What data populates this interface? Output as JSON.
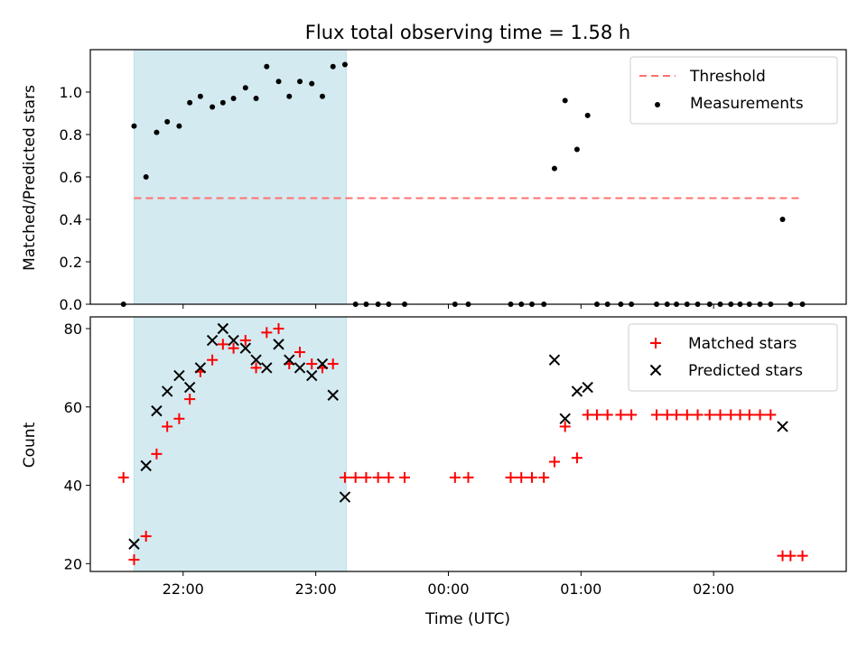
{
  "chart_data": {
    "title": "Flux total observing time = 1.58 h",
    "xlabel": "Time (UTC)",
    "x_ticks": [
      "22:00",
      "23:00",
      "00:00",
      "01:00",
      "02:00"
    ],
    "x_tick_hours": [
      22,
      23,
      24,
      25,
      26
    ],
    "xlim_hours": [
      21.3,
      27.0
    ],
    "shaded_interval_hours": [
      21.63,
      23.23
    ],
    "shade_color": "#d3eaf0",
    "panels": [
      {
        "type": "scatter",
        "ylabel": "Matched/Predicted stars",
        "ylim": [
          0,
          1.2
        ],
        "y_ticks": [
          "0.0",
          "0.2",
          "0.4",
          "0.6",
          "0.8",
          "1.0"
        ],
        "y_tick_values": [
          0,
          0.2,
          0.4,
          0.6,
          0.8,
          1.0
        ],
        "legend_position": "upper-right",
        "threshold": {
          "name": "Threshold",
          "value": 0.5,
          "x_range": [
            21.63,
            26.67
          ],
          "color": "#ff7070"
        },
        "series": [
          {
            "name": "Measurements",
            "marker": "dot",
            "color": "#000000",
            "x": [
              21.55,
              21.63,
              21.72,
              21.8,
              21.88,
              21.97,
              22.05,
              22.13,
              22.22,
              22.3,
              22.38,
              22.47,
              22.55,
              22.63,
              22.72,
              22.8,
              22.88,
              22.97,
              23.05,
              23.13,
              23.22,
              23.3,
              23.38,
              23.47,
              23.55,
              23.67,
              24.05,
              24.15,
              24.47,
              24.55,
              24.63,
              24.72,
              24.8,
              24.88,
              24.97,
              25.05,
              25.12,
              25.2,
              25.3,
              25.38,
              25.57,
              25.65,
              25.72,
              25.8,
              25.88,
              25.97,
              26.05,
              26.13,
              26.2,
              26.27,
              26.35,
              26.43,
              26.52,
              26.58,
              26.67
            ],
            "y": [
              0.0,
              0.84,
              0.6,
              0.81,
              0.86,
              0.84,
              0.95,
              0.98,
              0.93,
              0.95,
              0.97,
              1.02,
              0.97,
              1.12,
              1.05,
              0.98,
              1.05,
              1.04,
              0.98,
              1.12,
              1.13,
              0.0,
              0.0,
              0.0,
              0.0,
              0.0,
              0.0,
              0.0,
              0.0,
              0.0,
              0.0,
              0.0,
              0.64,
              0.96,
              0.73,
              0.89,
              0.0,
              0.0,
              0.0,
              0.0,
              0.0,
              0.0,
              0.0,
              0.0,
              0.0,
              0.0,
              0.0,
              0.0,
              0.0,
              0.0,
              0.0,
              0.0,
              0.4,
              0.0,
              0.0
            ]
          }
        ]
      },
      {
        "type": "scatter",
        "ylabel": "Count",
        "ylim": [
          18,
          83
        ],
        "y_ticks": [
          "20",
          "40",
          "60",
          "80"
        ],
        "y_tick_values": [
          20,
          40,
          60,
          80
        ],
        "legend_position": "upper-right",
        "series": [
          {
            "name": "Matched stars",
            "marker": "plus",
            "color": "#ff0000",
            "x": [
              21.55,
              21.63,
              21.72,
              21.8,
              21.88,
              21.97,
              22.05,
              22.13,
              22.22,
              22.3,
              22.38,
              22.47,
              22.55,
              22.63,
              22.72,
              22.8,
              22.88,
              22.97,
              23.05,
              23.13,
              23.22,
              23.3,
              23.38,
              23.47,
              23.55,
              23.67,
              24.05,
              24.15,
              24.47,
              24.55,
              24.63,
              24.72,
              24.8,
              24.88,
              24.97,
              25.05,
              25.12,
              25.2,
              25.3,
              25.38,
              25.57,
              25.65,
              25.72,
              25.8,
              25.88,
              25.97,
              26.05,
              26.13,
              26.2,
              26.27,
              26.35,
              26.43,
              26.52,
              26.58,
              26.67
            ],
            "y": [
              42,
              21,
              27,
              48,
              55,
              57,
              62,
              69,
              72,
              76,
              75,
              77,
              70,
              79,
              80,
              71,
              74,
              71,
              70,
              71,
              42,
              42,
              42,
              42,
              42,
              42,
              42,
              42,
              42,
              42,
              42,
              42,
              46,
              55,
              47,
              58,
              58,
              58,
              58,
              58,
              58,
              58,
              58,
              58,
              58,
              58,
              58,
              58,
              58,
              58,
              58,
              58,
              22,
              22,
              22
            ]
          },
          {
            "name": "Predicted stars",
            "marker": "x",
            "color": "#000000",
            "x": [
              21.63,
              21.72,
              21.8,
              21.88,
              21.97,
              22.05,
              22.13,
              22.22,
              22.3,
              22.38,
              22.47,
              22.55,
              22.63,
              22.72,
              22.8,
              22.88,
              22.97,
              23.05,
              23.13,
              23.22,
              24.8,
              24.88,
              24.97,
              25.05,
              26.52
            ],
            "y": [
              25,
              45,
              59,
              64,
              68,
              65,
              70,
              77,
              80,
              77,
              75,
              72,
              70,
              76,
              72,
              70,
              68,
              71,
              63,
              37,
              72,
              57,
              64,
              65,
              55
            ]
          }
        ]
      }
    ]
  }
}
